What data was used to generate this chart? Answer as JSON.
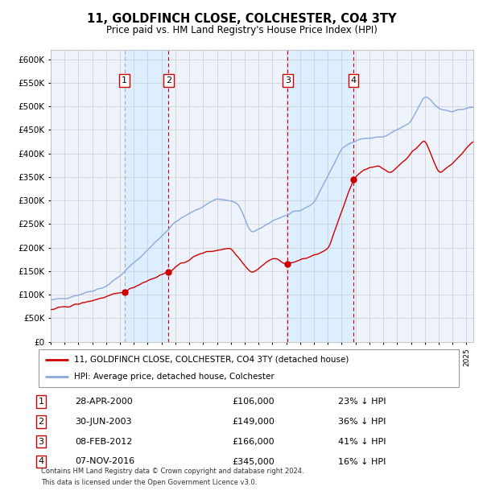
{
  "title": "11, GOLDFINCH CLOSE, COLCHESTER, CO4 3TY",
  "subtitle": "Price paid vs. HM Land Registry's House Price Index (HPI)",
  "grid_color": "#cccccc",
  "hpi_color": "#88aadd",
  "price_color": "#cc0000",
  "shade_color": "#ddeeff",
  "ylim": [
    0,
    620000
  ],
  "yticks": [
    0,
    50000,
    100000,
    150000,
    200000,
    250000,
    300000,
    350000,
    400000,
    450000,
    500000,
    550000,
    600000
  ],
  "sales": [
    {
      "label": "1",
      "date": "28-APR-2000",
      "price": 106000,
      "pct": "23%",
      "x_year": 2000.33
    },
    {
      "label": "2",
      "date": "30-JUN-2003",
      "price": 149000,
      "pct": "36%",
      "x_year": 2003.5
    },
    {
      "label": "3",
      "date": "08-FEB-2012",
      "price": 166000,
      "pct": "41%",
      "x_year": 2012.1
    },
    {
      "label": "4",
      "date": "07-NOV-2016",
      "price": 345000,
      "pct": "16%",
      "x_year": 2016.85
    }
  ],
  "legend_line1": "11, GOLDFINCH CLOSE, COLCHESTER, CO4 3TY (detached house)",
  "legend_line2": "HPI: Average price, detached house, Colchester",
  "footnote1": "Contains HM Land Registry data © Crown copyright and database right 2024.",
  "footnote2": "This data is licensed under the Open Government Licence v3.0.",
  "xmin": 1995.0,
  "xmax": 2025.5
}
